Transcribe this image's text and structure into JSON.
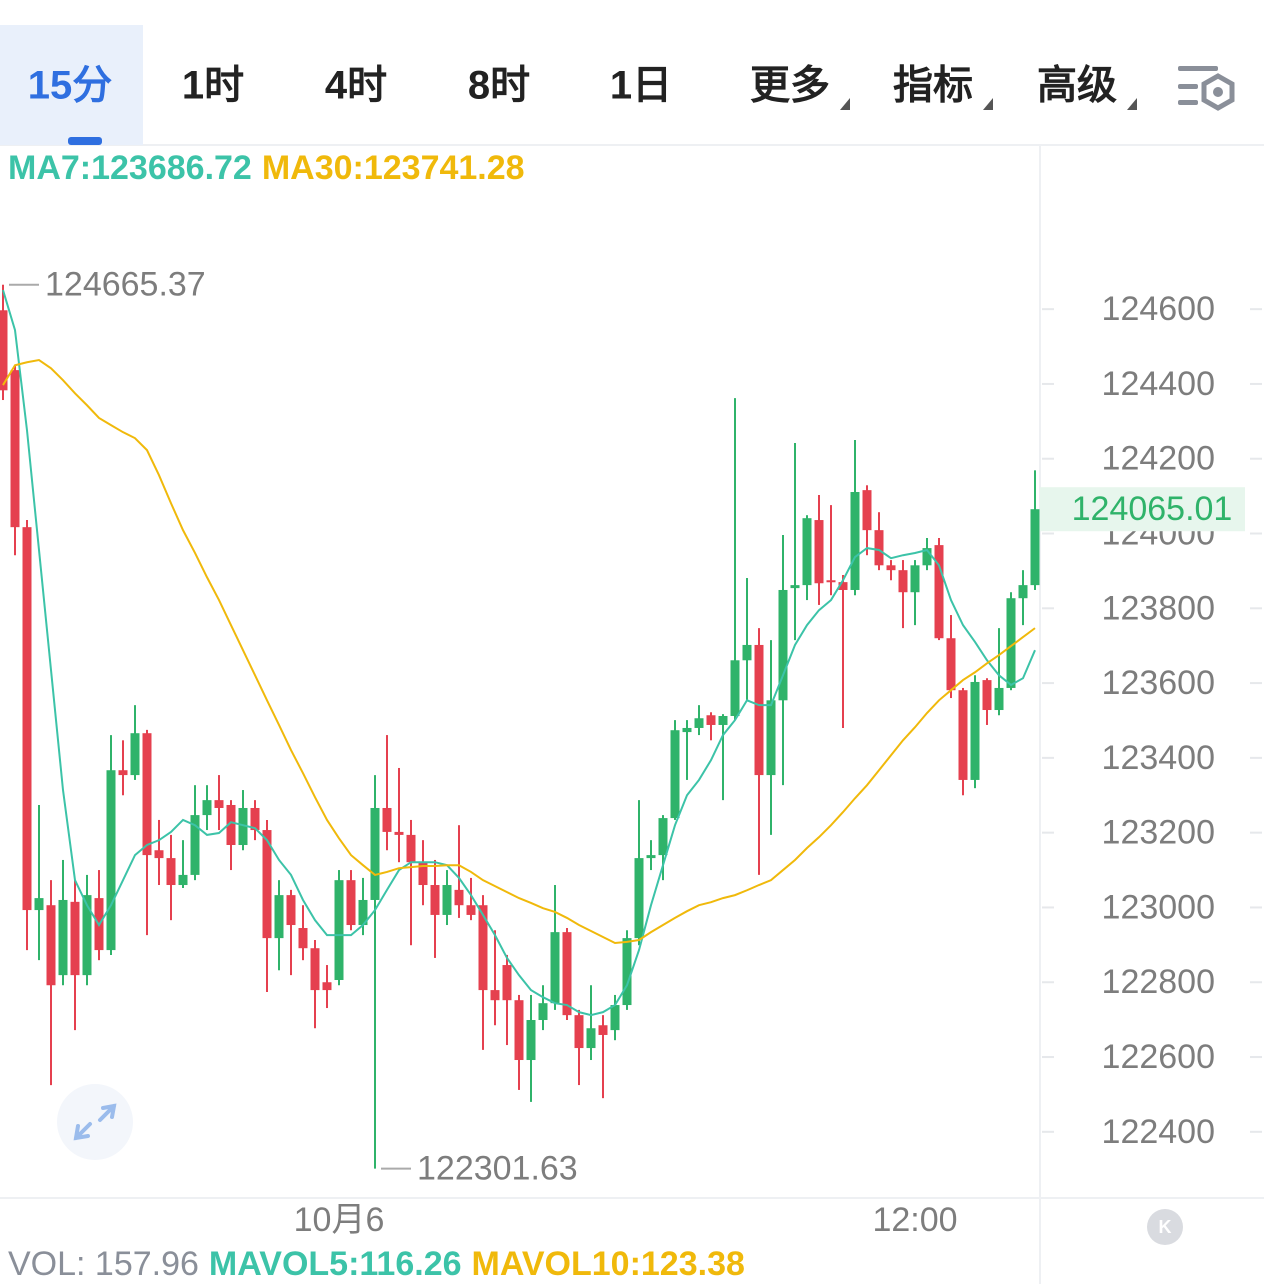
{
  "tabs": [
    "15分",
    "1时",
    "4时",
    "8时",
    "1日",
    "更多",
    "指标",
    "高级"
  ],
  "selected_tab": 0,
  "chart_data": {
    "type": "candlestick",
    "up_color": "#2fb36a",
    "down_color": "#e5404f",
    "categories": [
      null,
      null,
      null,
      null,
      null,
      null,
      null,
      null,
      null,
      null,
      null,
      null,
      null,
      null,
      null,
      null,
      null,
      null,
      null,
      null,
      null,
      null,
      null,
      null,
      null,
      null,
      null,
      null,
      "10月6",
      null,
      null,
      null,
      null,
      null,
      null,
      null,
      null,
      null,
      null,
      null,
      null,
      null,
      null,
      null,
      null,
      null,
      null,
      null,
      null,
      null,
      null,
      null,
      null,
      null,
      null,
      null,
      null,
      null,
      null,
      null,
      null,
      null,
      null,
      null,
      null,
      null,
      null,
      null,
      null,
      null,
      null,
      null,
      null,
      null,
      null,
      null,
      "12:00",
      null,
      null,
      null,
      null,
      null,
      null,
      null,
      null,
      null,
      null
    ],
    "open": [
      124597,
      124437,
      124017,
      122993,
      123006,
      122819,
      123015,
      122819,
      123025,
      122886,
      123367,
      123354,
      123466,
      123153,
      123132,
      123060,
      123087,
      123247,
      123287,
      123274,
      123167,
      123266,
      123207,
      122918,
      123033,
      122945,
      122891,
      122800,
      122806,
      123073,
      122953,
      123020,
      123266,
      123202,
      123194,
      123121,
      123060,
      122980,
      123047,
      123006,
      123006,
      122779,
      122846,
      122752,
      122592,
      122699,
      122744,
      122934,
      122712,
      122624,
      122685,
      122672,
      122739,
      122918,
      123132,
      123140,
      123239,
      123469,
      123480,
      123514,
      123488,
      123512,
      123661,
      123702,
      123354,
      123554,
      123854,
      123862,
      124036,
      123875,
      123870,
      123849,
      124116,
      124009,
      123915,
      123902,
      123843,
      123915,
      123969,
      123720,
      123581,
      123341,
      123608,
      123528,
      123587,
      123827,
      123862
    ],
    "high": [
      124665.37,
      124450,
      124036,
      123274,
      123073,
      123127,
      123073,
      123087,
      123100,
      123461,
      123447,
      123541,
      123475,
      123234,
      123194,
      123180,
      123327,
      123327,
      123354,
      123287,
      123314,
      123287,
      123234,
      123073,
      123047,
      123006,
      122913,
      122846,
      123100,
      123100,
      123079,
      123354,
      123461,
      123373,
      123234,
      123180,
      123127,
      123100,
      123220,
      123079,
      123033,
      122939,
      122873,
      122766,
      122766,
      122792,
      123060,
      122945,
      122726,
      122792,
      122712,
      122766,
      122939,
      123287,
      123180,
      123247,
      123501,
      123501,
      123541,
      123522,
      123517,
      124362,
      123881,
      123747,
      123715,
      123996,
      124242,
      124049,
      124103,
      124076,
      123889,
      124250,
      124129,
      124057,
      123929,
      123929,
      123929,
      123988,
      123988,
      123782,
      123587,
      123621,
      123613,
      123747,
      123843,
      123902,
      124169
    ],
    "low": [
      124357,
      123942,
      122886,
      122859,
      122525,
      122792,
      122672,
      122792,
      122859,
      122873,
      123300,
      123341,
      122926,
      123060,
      122966,
      123052,
      123073,
      123207,
      123207,
      123100,
      123153,
      123180,
      122774,
      122832,
      122819,
      122859,
      122677,
      122731,
      122792,
      122939,
      122926,
      122301.63,
      123153,
      123121,
      122899,
      123006,
      122865,
      122953,
      122972,
      122966,
      122619,
      122685,
      122632,
      122512,
      122480,
      122672,
      122726,
      122699,
      122525,
      122592,
      122490,
      122645,
      122726,
      122899,
      123100,
      123073,
      123234,
      123341,
      123461,
      123447,
      123287,
      123501,
      123554,
      123087,
      123194,
      123327,
      123715,
      123822,
      123809,
      123835,
      123480,
      123835,
      123942,
      123902,
      123875,
      123747,
      123755,
      123902,
      123715,
      123560,
      123300,
      123319,
      123488,
      123514,
      123581,
      123755,
      123849
    ],
    "close": [
      124383,
      124017,
      122993,
      123025,
      122792,
      123020,
      122819,
      123033,
      122886,
      123367,
      123354,
      123466,
      123140,
      123132,
      123060,
      123087,
      123247,
      123287,
      123266,
      123167,
      123266,
      123207,
      122918,
      123033,
      122953,
      122891,
      122779,
      122779,
      123073,
      122953,
      123020,
      123266,
      123202,
      123194,
      123121,
      123060,
      122980,
      123060,
      123006,
      122980,
      122779,
      122752,
      122752,
      122592,
      122699,
      122744,
      122934,
      122712,
      122624,
      122677,
      122659,
      122739,
      122918,
      123132,
      123140,
      123239,
      123474,
      123480,
      123506,
      123488,
      123512,
      123661,
      123702,
      123354,
      123554,
      123849,
      123862,
      124041,
      123867,
      123870,
      123849,
      124111,
      124009,
      123915,
      123902,
      123843,
      123915,
      123961,
      123720,
      123581,
      123341,
      123603,
      123528,
      123587,
      123827,
      123862,
      124065.01
    ],
    "lines": [
      {
        "name": "MA7:123686.72",
        "color": "#3cc3a8",
        "values": [
          124651,
          124544,
          124276,
          123956,
          123635,
          123314,
          123073,
          123006,
          122953,
          123006,
          123073,
          123140,
          123167,
          123180,
          123202,
          123234,
          123220,
          123194,
          123199,
          123228,
          123220,
          123212,
          123180,
          123127,
          123087,
          123020,
          122966,
          122926,
          122926,
          122926,
          122953,
          122993,
          123047,
          123100,
          123121,
          123121,
          123121,
          123113,
          123079,
          123033,
          122980,
          122926,
          122865,
          122819,
          122779,
          122760,
          122744,
          122739,
          122720,
          122712,
          122720,
          122739,
          122792,
          122886,
          123006,
          123113,
          123220,
          123300,
          123341,
          123394,
          123461,
          123501,
          123554,
          123541,
          123541,
          123621,
          123702,
          123755,
          123795,
          123822,
          123875,
          123937,
          123961,
          123956,
          123934,
          123942,
          123948,
          123956,
          123915,
          123822,
          123755,
          123710,
          123661,
          123621,
          123595,
          123613,
          123688
        ]
      },
      {
        "name": "MA30:123741.28",
        "color": "#f0b90b",
        "values": [
          124397,
          124450,
          124458,
          124464,
          124442,
          124410,
          124375,
          124343,
          124309,
          124290,
          124271,
          124255,
          124223,
          124156,
          124081,
          124009,
          123948,
          123883,
          123822,
          123755,
          123688,
          123621,
          123554,
          123488,
          123421,
          123359,
          123295,
          123234,
          123185,
          123140,
          123113,
          123087,
          123095,
          123105,
          123108,
          123111,
          123111,
          123113,
          123113,
          123095,
          123073,
          123057,
          123041,
          123025,
          123012,
          122998,
          122988,
          122972,
          122953,
          122937,
          122921,
          122905,
          122908,
          122913,
          122934,
          122953,
          122972,
          122990,
          123006,
          123014,
          123025,
          123033,
          123046,
          123060,
          123073,
          123100,
          123127,
          123159,
          123188,
          123220,
          123255,
          123292,
          123327,
          123367,
          123407,
          123447,
          123482,
          123520,
          123554,
          123581,
          123608,
          123629,
          123653,
          123675,
          123699,
          123723,
          123747
        ]
      }
    ],
    "ylim": [
      122223,
      125039
    ],
    "yticks": [
      124600,
      124400,
      124200,
      124000,
      123800,
      123600,
      123400,
      123200,
      123000,
      122800,
      122600,
      122400
    ],
    "volume_legend": [
      {
        "text": "VOL: 157.96",
        "color": "#8a8f99"
      },
      {
        "text": "MAVOL5:116.26",
        "color": "#3cc3a8"
      },
      {
        "text": "MAVOL10:123.38",
        "color": "#f0b90b"
      }
    ]
  }
}
